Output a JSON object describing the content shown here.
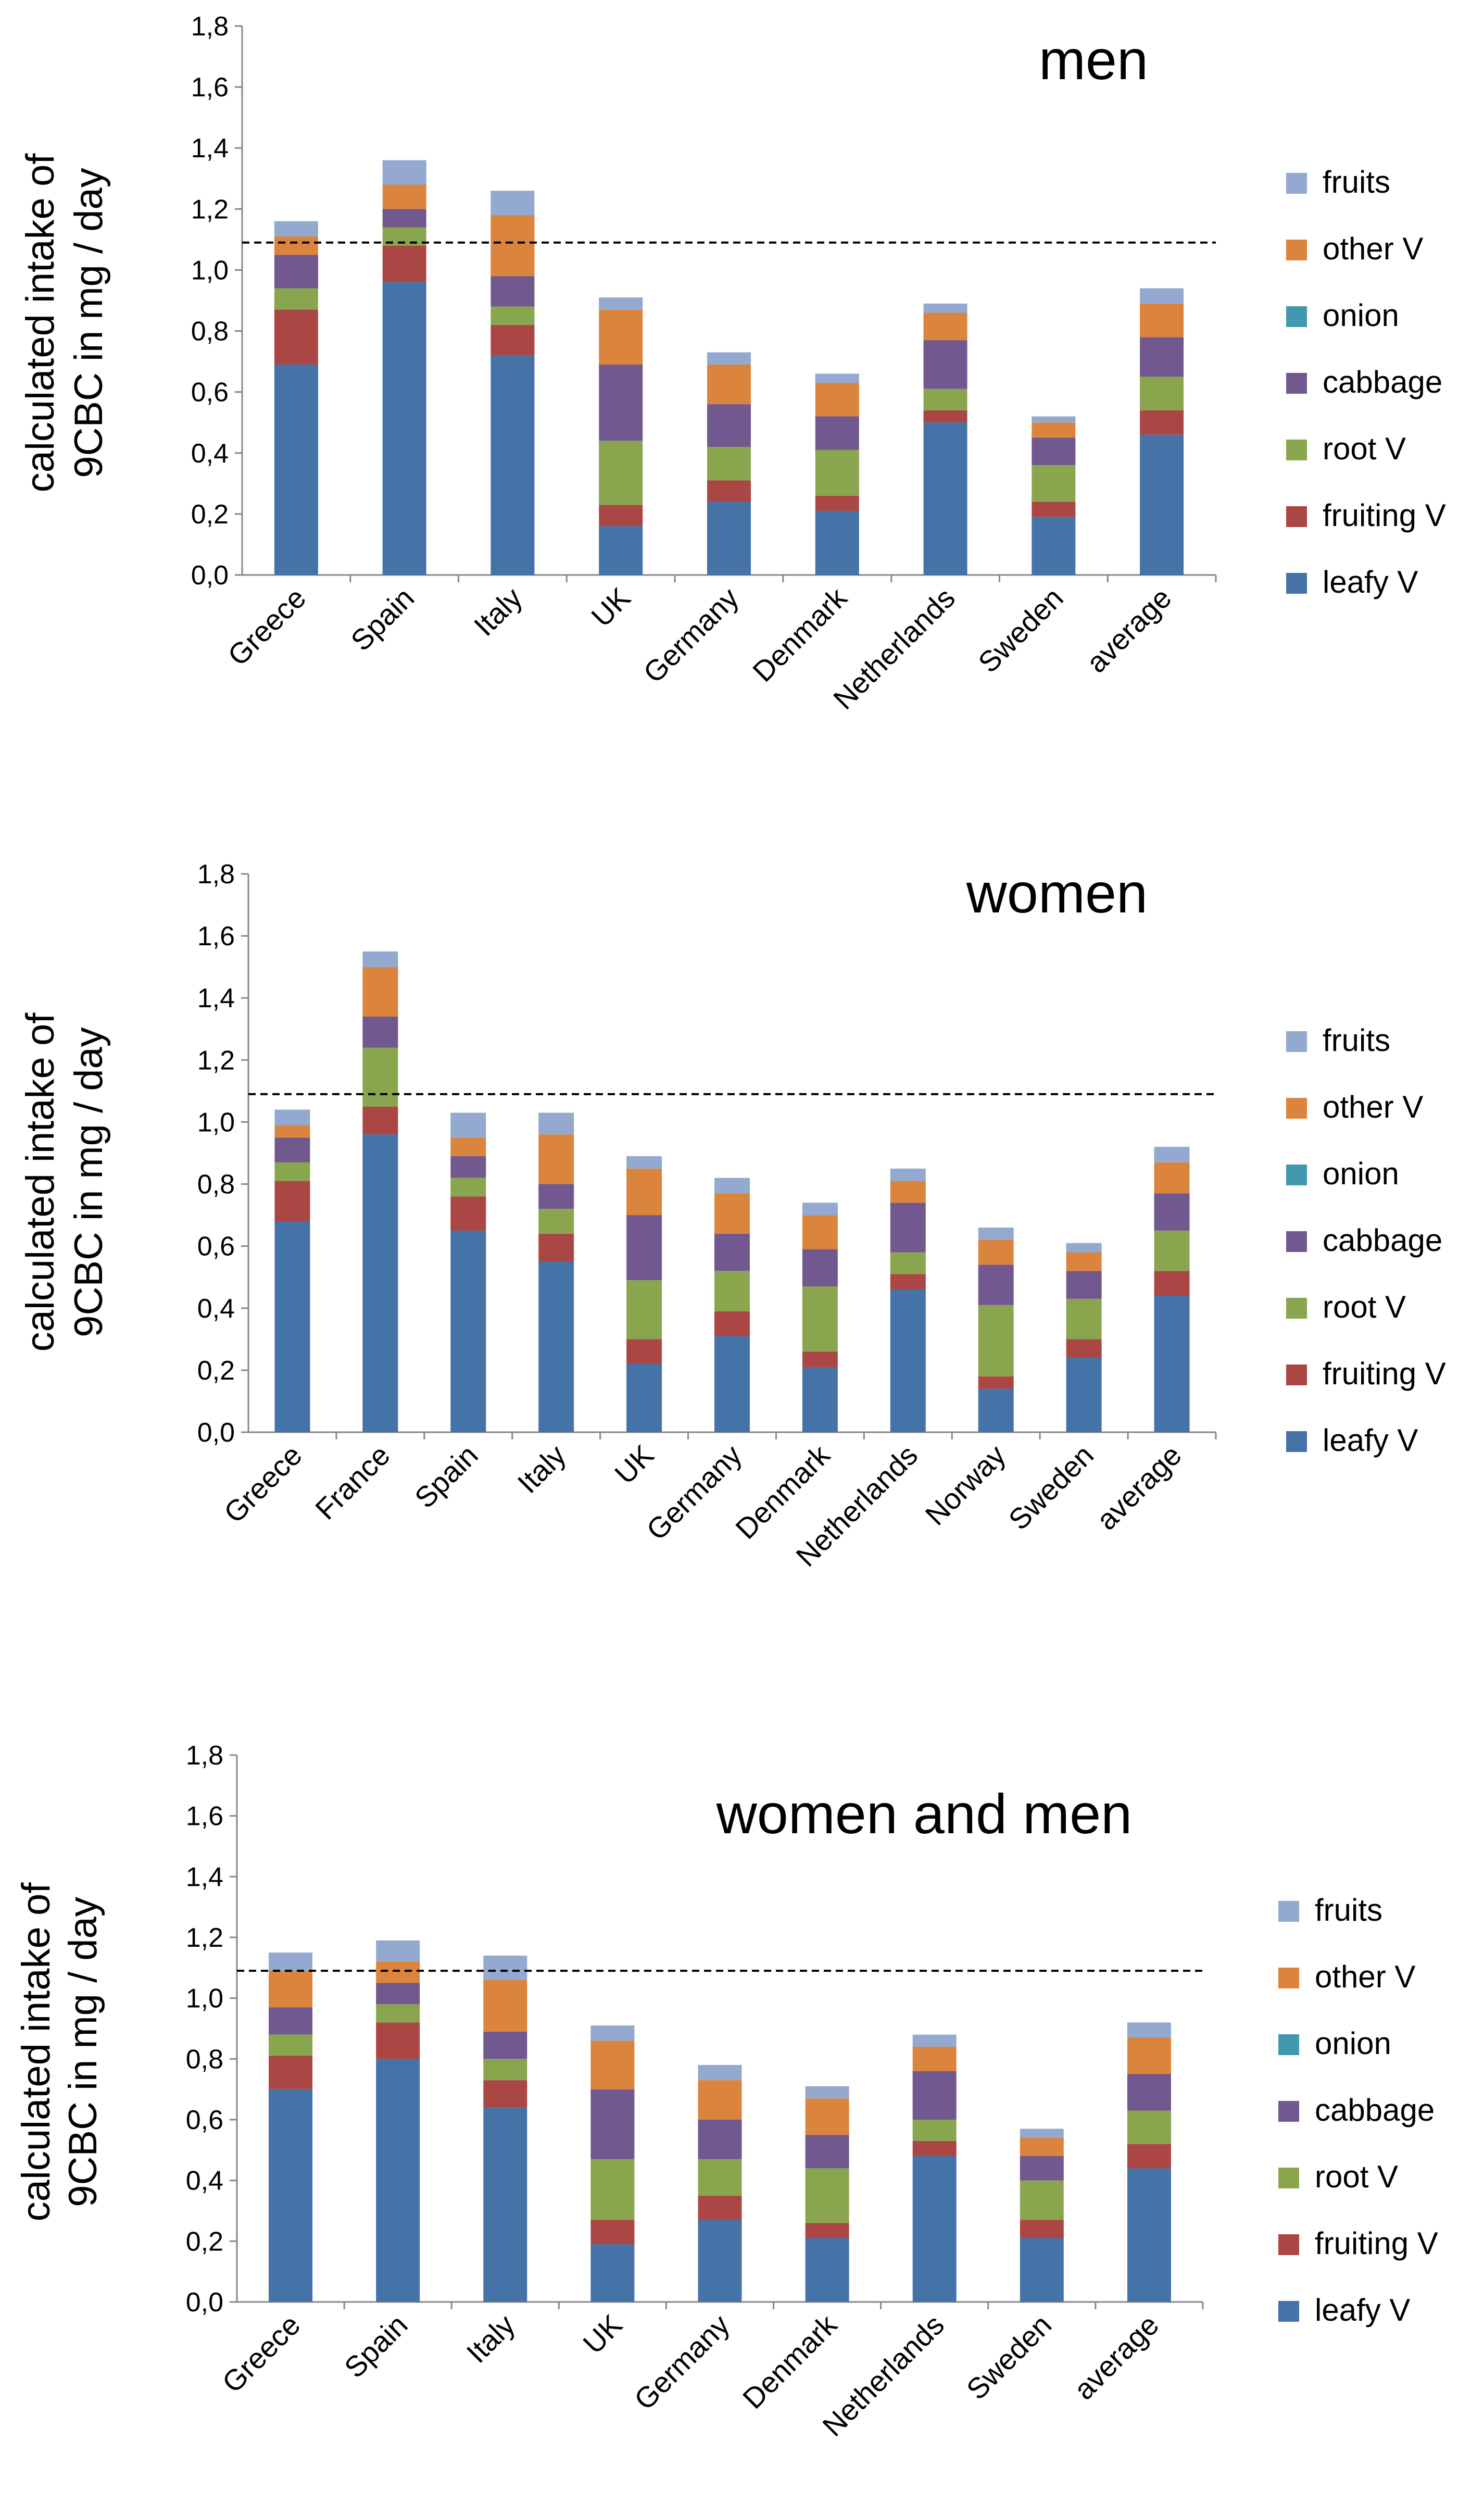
{
  "colors": {
    "leafy_v": "#4572A7",
    "fruiting_v": "#AA4643",
    "root_v": "#89A54E",
    "cabbage": "#71588F",
    "onion": "#4198AF",
    "other_v": "#DB843D",
    "fruits": "#93A9CF",
    "axis": "#868686",
    "reference_line": "#000000"
  },
  "chart_data": [
    {
      "type": "bar",
      "stacked": true,
      "title": "men",
      "ylabel": [
        "calculated intake of",
        "9CBC  in mg / day"
      ],
      "ylim": [
        0,
        1.8
      ],
      "yticks": [
        "0,0",
        "0,2",
        "0,4",
        "0,6",
        "0,8",
        "1,0",
        "1,2",
        "1,4",
        "1,6",
        "1,8"
      ],
      "reference_line": 1.09,
      "categories": [
        "Greece",
        "Spain",
        "Italy",
        "UK",
        "Germany",
        "Denmark",
        "Netherlands",
        "Sweden",
        "average"
      ],
      "series": [
        {
          "name": "leafy V",
          "values": [
            0.69,
            0.96,
            0.72,
            0.16,
            0.24,
            0.21,
            0.5,
            0.19,
            0.46
          ]
        },
        {
          "name": "fruiting V",
          "values": [
            0.18,
            0.12,
            0.1,
            0.07,
            0.07,
            0.05,
            0.04,
            0.05,
            0.08
          ]
        },
        {
          "name": "root V",
          "values": [
            0.07,
            0.06,
            0.06,
            0.21,
            0.11,
            0.15,
            0.07,
            0.12,
            0.11
          ]
        },
        {
          "name": "cabbage",
          "values": [
            0.11,
            0.06,
            0.1,
            0.25,
            0.14,
            0.11,
            0.16,
            0.09,
            0.13
          ]
        },
        {
          "name": "onion",
          "values": [
            0.0,
            0.0,
            0.0,
            0.0,
            0.0,
            0.0,
            0.0,
            0.0,
            0.0
          ]
        },
        {
          "name": "other V",
          "values": [
            0.06,
            0.08,
            0.2,
            0.18,
            0.13,
            0.11,
            0.09,
            0.05,
            0.11
          ]
        },
        {
          "name": "fruits",
          "values": [
            0.05,
            0.08,
            0.08,
            0.04,
            0.04,
            0.03,
            0.03,
            0.02,
            0.05
          ]
        }
      ],
      "legend_order": [
        "fruits",
        "other V",
        "onion",
        "cabbage",
        "root V",
        "fruiting V",
        "leafy V"
      ],
      "legend_position": "right"
    },
    {
      "type": "bar",
      "stacked": true,
      "title": "women",
      "ylabel": [
        "calculated intake of",
        "9CBC  in mg / day"
      ],
      "ylim": [
        0,
        1.8
      ],
      "yticks": [
        "0,0",
        "0,2",
        "0,4",
        "0,6",
        "0,8",
        "1,0",
        "1,2",
        "1,4",
        "1,6",
        "1,8"
      ],
      "reference_line": 1.09,
      "categories": [
        "Greece",
        "France",
        "Spain",
        "Italy",
        "UK",
        "Germany",
        "Denmark",
        "Netherlands",
        "Norway",
        "Sweden",
        "average"
      ],
      "series": [
        {
          "name": "leafy V",
          "values": [
            0.68,
            0.96,
            0.65,
            0.55,
            0.22,
            0.31,
            0.21,
            0.46,
            0.14,
            0.24,
            0.44
          ]
        },
        {
          "name": "fruiting V",
          "values": [
            0.13,
            0.09,
            0.11,
            0.09,
            0.08,
            0.08,
            0.05,
            0.05,
            0.04,
            0.06,
            0.08
          ]
        },
        {
          "name": "root V",
          "values": [
            0.06,
            0.19,
            0.06,
            0.08,
            0.19,
            0.13,
            0.21,
            0.07,
            0.23,
            0.13,
            0.13
          ]
        },
        {
          "name": "cabbage",
          "values": [
            0.08,
            0.1,
            0.07,
            0.08,
            0.21,
            0.12,
            0.12,
            0.16,
            0.13,
            0.09,
            0.12
          ]
        },
        {
          "name": "onion",
          "values": [
            0.0,
            0.0,
            0.0,
            0.0,
            0.0,
            0.0,
            0.0,
            0.0,
            0.0,
            0.0,
            0.0
          ]
        },
        {
          "name": "other V",
          "values": [
            0.04,
            0.16,
            0.06,
            0.16,
            0.15,
            0.13,
            0.11,
            0.07,
            0.08,
            0.06,
            0.1
          ]
        },
        {
          "name": "fruits",
          "values": [
            0.05,
            0.05,
            0.08,
            0.07,
            0.04,
            0.05,
            0.04,
            0.04,
            0.04,
            0.03,
            0.05
          ]
        }
      ],
      "legend_order": [
        "fruits",
        "other V",
        "onion",
        "cabbage",
        "root V",
        "fruiting V",
        "leafy V"
      ],
      "legend_position": "right"
    },
    {
      "type": "bar",
      "stacked": true,
      "title": "women and men",
      "ylabel": [
        "calculated intake of",
        "9CBC  in mg / day"
      ],
      "ylim": [
        0,
        1.8
      ],
      "yticks": [
        "0,0",
        "0,2",
        "0,4",
        "0,6",
        "0,8",
        "1,0",
        "1,2",
        "1,4",
        "1,6",
        "1,8"
      ],
      "reference_line": 1.09,
      "categories": [
        "Greece",
        "Spain",
        "Italy",
        "UK",
        "Germany",
        "Denmark",
        "Netherlands",
        "Sweden",
        "average"
      ],
      "series": [
        {
          "name": "leafy V",
          "values": [
            0.7,
            0.8,
            0.64,
            0.19,
            0.27,
            0.21,
            0.48,
            0.21,
            0.44
          ]
        },
        {
          "name": "fruiting V",
          "values": [
            0.11,
            0.12,
            0.09,
            0.08,
            0.08,
            0.05,
            0.05,
            0.06,
            0.08
          ]
        },
        {
          "name": "root V",
          "values": [
            0.07,
            0.06,
            0.07,
            0.2,
            0.12,
            0.18,
            0.07,
            0.13,
            0.11
          ]
        },
        {
          "name": "cabbage",
          "values": [
            0.09,
            0.07,
            0.09,
            0.23,
            0.13,
            0.11,
            0.16,
            0.08,
            0.12
          ]
        },
        {
          "name": "onion",
          "values": [
            0.0,
            0.0,
            0.0,
            0.0,
            0.0,
            0.0,
            0.0,
            0.0,
            0.0
          ]
        },
        {
          "name": "other V",
          "values": [
            0.12,
            0.07,
            0.17,
            0.16,
            0.13,
            0.12,
            0.08,
            0.06,
            0.12
          ]
        },
        {
          "name": "fruits",
          "values": [
            0.06,
            0.07,
            0.08,
            0.05,
            0.05,
            0.04,
            0.04,
            0.03,
            0.05
          ]
        }
      ],
      "legend_order": [
        "fruits",
        "other V",
        "onion",
        "cabbage",
        "root V",
        "fruiting V",
        "leafy V"
      ],
      "legend_position": "right"
    }
  ]
}
